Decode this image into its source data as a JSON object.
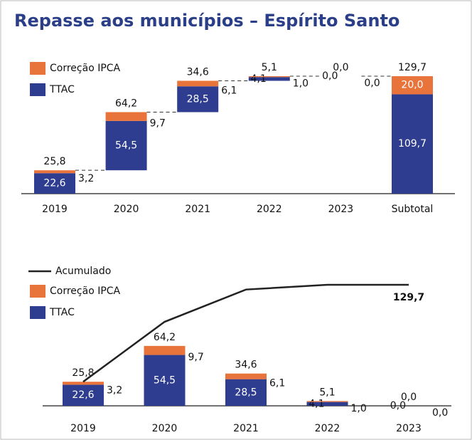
{
  "chart_data": [
    {
      "type": "waterfall",
      "title": "Repasse aos municípios – Espírito Santo",
      "categories": [
        "2019",
        "2020",
        "2021",
        "2022",
        "2023",
        "Subtotal"
      ],
      "is_total": [
        false,
        false,
        false,
        false,
        false,
        true
      ],
      "series": [
        {
          "name": "TTAC",
          "color": "#2e3d8f",
          "values": [
            22.6,
            54.5,
            28.5,
            4.1,
            0.0,
            109.7
          ],
          "value_labels": [
            "22,6",
            "54,5",
            "28,5",
            "4,1",
            "0,0",
            "109,7"
          ]
        },
        {
          "name": "Correção IPCA",
          "color": "#e8743b",
          "values": [
            3.2,
            9.7,
            6.1,
            1.0,
            0.0,
            20.0
          ],
          "value_labels": [
            "3,2",
            "9,7",
            "6,1",
            "1,0",
            "0,0",
            "20,0"
          ]
        }
      ],
      "totals": [
        25.8,
        64.2,
        34.6,
        5.1,
        0.0,
        129.7
      ],
      "total_labels": [
        "25,8",
        "64,2",
        "34,6",
        "5,1",
        "0,0",
        "129,7"
      ]
    },
    {
      "type": "bar_line",
      "categories": [
        "2019",
        "2020",
        "2021",
        "2022",
        "2023"
      ],
      "series": [
        {
          "name": "TTAC",
          "color": "#2e3d8f",
          "values": [
            22.6,
            54.5,
            28.5,
            4.1,
            0.0
          ],
          "value_labels": [
            "22,6",
            "54,5",
            "28,5",
            "4,1",
            "0,0"
          ]
        },
        {
          "name": "Correção IPCA",
          "color": "#e8743b",
          "values": [
            3.2,
            9.7,
            6.1,
            1.0,
            0.0
          ],
          "value_labels": [
            "3,2",
            "9,7",
            "6,1",
            "1,0",
            "0,0"
          ]
        }
      ],
      "totals": [
        25.8,
        64.2,
        34.6,
        5.1,
        0.0
      ],
      "total_labels": [
        "25,8",
        "64,2",
        "34,6",
        "5,1",
        "0,0"
      ],
      "line": {
        "name": "Acumulado",
        "color": "#222222",
        "values": [
          25.8,
          90.0,
          124.6,
          129.7,
          129.7
        ],
        "value_labels": [
          null,
          null,
          null,
          null,
          "129,7"
        ]
      }
    }
  ]
}
